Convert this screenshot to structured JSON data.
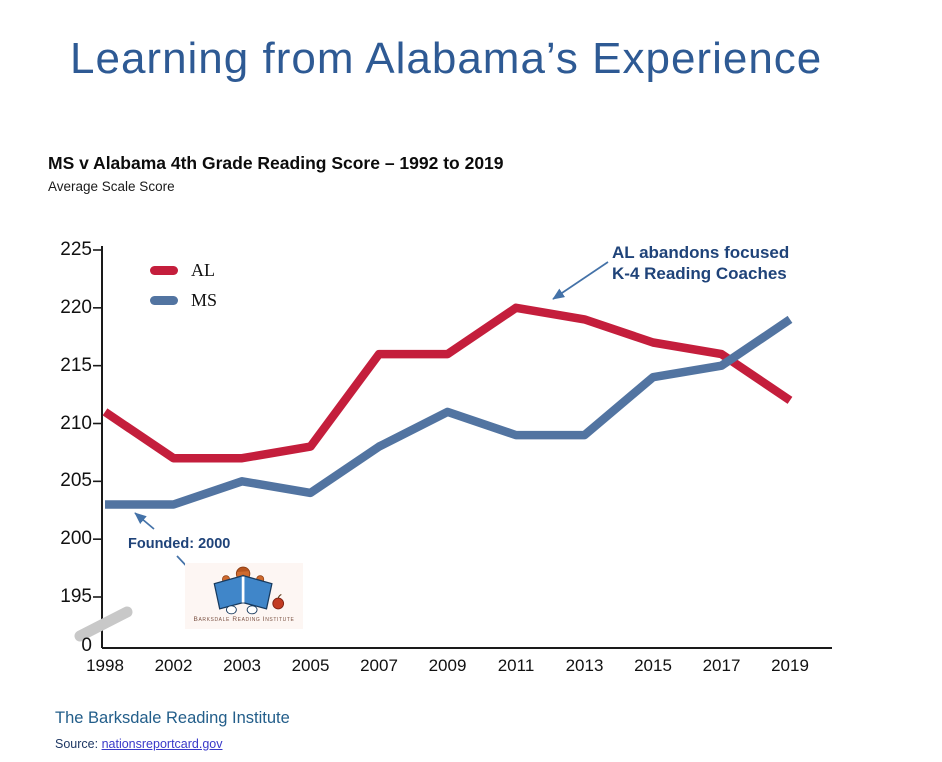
{
  "slide": {
    "title": "Learning from Alabama’s Experience"
  },
  "chart_data": {
    "type": "line",
    "title": "MS v Alabama 4th Grade Reading Score – 1992 to 2019",
    "subtitle": "Average Scale Score",
    "categories": [
      "1998",
      "2002",
      "2003",
      "2005",
      "2007",
      "2009",
      "2011",
      "2013",
      "2015",
      "2017",
      "2019"
    ],
    "series": [
      {
        "name": "AL",
        "color": "#C41E3C",
        "values": [
          211,
          207,
          207,
          208,
          216,
          216,
          220,
          219,
          217,
          216,
          212
        ]
      },
      {
        "name": "MS",
        "color": "#5274A1",
        "values": [
          203,
          203,
          205,
          204,
          208,
          211,
          209,
          209,
          214,
          215,
          219
        ]
      }
    ],
    "y_ticks": [
      225,
      220,
      215,
      210,
      205,
      200,
      195
    ],
    "y_axis_zero_label": "0",
    "ylim": [
      195,
      225
    ],
    "grid": false,
    "legend_position": "top-left-inside",
    "y_axis_break": true,
    "annotations": [
      {
        "text": "AL abandons focused\nK-4 Reading Coaches",
        "target": "AL line after 2011 peak"
      },
      {
        "text": "Founded: 2000",
        "target": "MS line at year 2000 and Barksdale logo"
      }
    ]
  },
  "logo": {
    "caption": "Barksdale Reading Institute"
  },
  "footer": {
    "org": "The Barksdale Reading Institute",
    "source_label": "Source:",
    "source_link": "nationsreportcard.gov"
  },
  "colors": {
    "al_line": "#C41E3C",
    "ms_line": "#5274A1",
    "slide_title": "#2E5A94",
    "annotation_text": "#1F4379",
    "arrow": "#4472A8",
    "link": "#3939C9",
    "axis": "#1a1a1a",
    "axis_break": "#C8C8C8"
  }
}
